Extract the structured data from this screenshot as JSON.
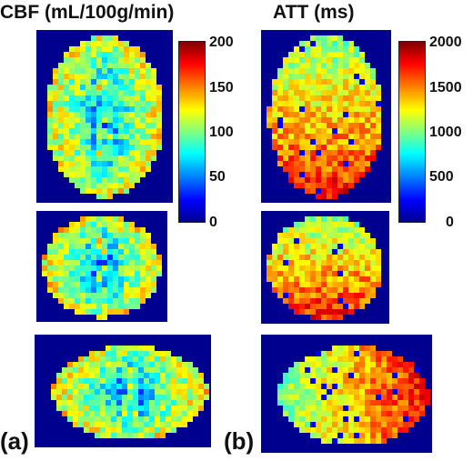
{
  "titles": {
    "left": "CBF (mL/100g/min)",
    "right": "ATT (ms)"
  },
  "panel_labels": {
    "a": "(a)",
    "b": "(b)"
  },
  "colorbars": {
    "cbf": {
      "ticks": [
        "200",
        "150",
        "100",
        "50",
        "0"
      ],
      "range": [
        0,
        200
      ]
    },
    "att": {
      "ticks": [
        "2000",
        "1500",
        "1000",
        "500",
        "0"
      ],
      "range": [
        0,
        2000
      ]
    }
  },
  "colors": {
    "background_dark_blue": "#00008f",
    "colormap": "jet"
  },
  "maps": {
    "cbf_level": 0.48,
    "att_level": 0.68
  }
}
